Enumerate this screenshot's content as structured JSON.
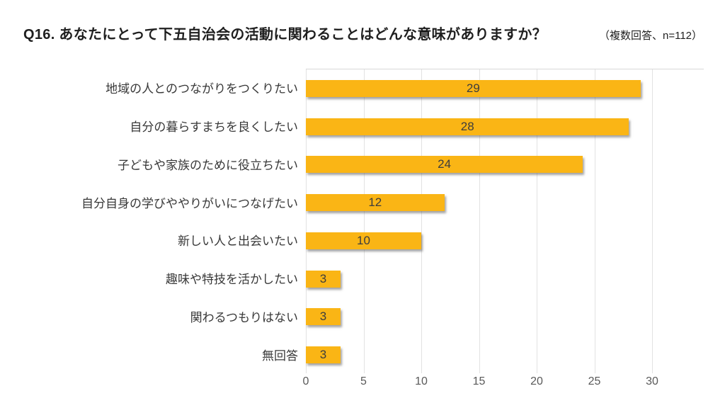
{
  "title": "Q16. あなたにとって下五自治会の活動に関わることはどんな意味がありますか？",
  "note": "（複数回答、n=112）",
  "colors": {
    "background": "#FFFFFF",
    "bar": "#FAB515",
    "bar_label": "#3D3D3D",
    "category_label": "#383838",
    "axis_label": "#595959",
    "gridline": "#E2E2E2",
    "plot_top_border": "#D8D8D8",
    "title": "#1F1F1F"
  },
  "chart_data": {
    "type": "bar",
    "orientation": "horizontal",
    "title": "Q16. あなたにとって下五自治会の活動に関わることはどんな意味がありますか？",
    "subtitle": "（複数回答、n=112）",
    "categories": [
      "地域の人とのつながりをつくりたい",
      "自分の暮らすまちを良くしたい",
      "子どもや家族のために役立ちたい",
      "自分自身の学びややりがいにつなげたい",
      "新しい人と出会いたい",
      "趣味や特技を活かしたい",
      "関わるつもりはない",
      "無回答"
    ],
    "values": [
      29,
      28,
      24,
      12,
      10,
      3,
      3,
      3
    ],
    "xlabel": "",
    "ylabel": "",
    "xlim": [
      0,
      34.5
    ],
    "xticks": [
      0,
      5,
      10,
      15,
      20,
      25,
      30
    ],
    "grid": true,
    "legend": "none",
    "data_labels": "inside-center"
  }
}
